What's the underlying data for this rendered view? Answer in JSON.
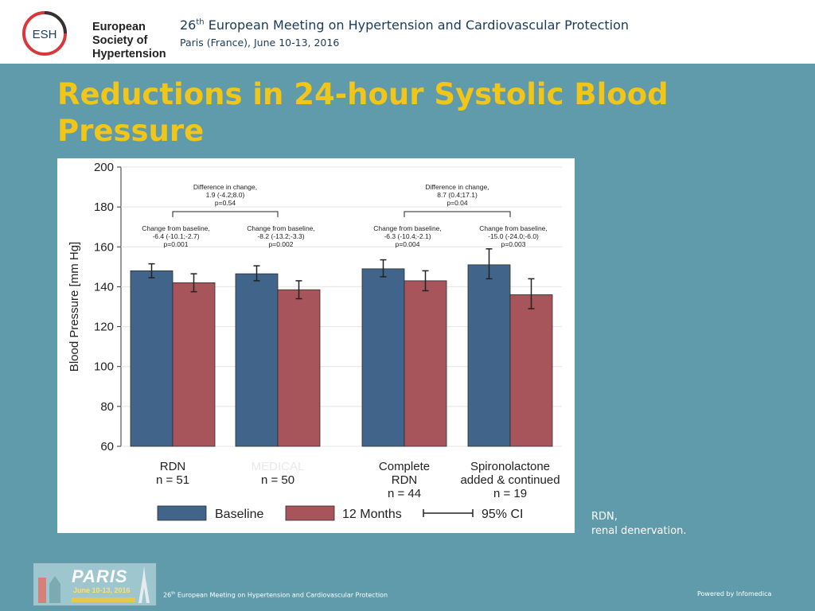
{
  "header": {
    "logo_lines": [
      "European",
      "Society of",
      "Hypertension"
    ],
    "logo_abbr": "ESH",
    "meeting_ordinal_num": "26",
    "meeting_ordinal_sup": "th",
    "meeting_title": " European Meeting on Hypertension and Cardiovascular Protection",
    "meeting_sub": "Paris (France), June 10-13, 2016"
  },
  "slide": {
    "title": "Reductions in 24-hour Systolic Blood Pressure"
  },
  "chart_data": {
    "type": "bar",
    "ylabel": "Blood Pressure [mm Hg]",
    "ylim": [
      60,
      200
    ],
    "yticks": [
      60,
      80,
      100,
      120,
      140,
      160,
      180,
      200
    ],
    "groups": [
      {
        "label_lines": [
          "RDN",
          "n = 51"
        ],
        "baseline": 148,
        "months12": 142,
        "baseline_ci": [
          144.5,
          151.5
        ],
        "months12_ci": [
          137.5,
          146.5
        ]
      },
      {
        "label_lines": [
          "MEDICAL",
          "n = 50"
        ],
        "baseline": 146.5,
        "months12": 138.5,
        "baseline_ci": [
          143,
          150.5
        ],
        "months12_ci": [
          134,
          143
        ]
      },
      {
        "label_lines": [
          "Complete",
          "RDN",
          "n = 44"
        ],
        "baseline": 149,
        "months12": 143,
        "baseline_ci": [
          145,
          153.5
        ],
        "months12_ci": [
          138,
          148
        ]
      },
      {
        "label_lines": [
          "Spironolactone",
          "added & continued",
          "n = 19"
        ],
        "baseline": 151,
        "months12": 136,
        "baseline_ci": [
          144,
          159
        ],
        "months12_ci": [
          129,
          144
        ]
      }
    ],
    "series": [
      {
        "name": "Baseline",
        "color": "#41658a"
      },
      {
        "name": "12 Months",
        "color": "#a8545b"
      }
    ],
    "ci_legend": "95% CI",
    "change_annotations": [
      {
        "group": 0,
        "lines": [
          "Change from baseline,",
          "-6.4 (-10.1;-2.7)",
          "p=0.001"
        ]
      },
      {
        "group": 1,
        "lines": [
          "Change from baseline,",
          "-8.2 (-13.2;-3.3)",
          "p=0.002"
        ]
      },
      {
        "group": 2,
        "lines": [
          "Change from baseline,",
          "-6.3 (-10.4;-2.1)",
          "p=0.004"
        ]
      },
      {
        "group": 3,
        "lines": [
          "Change from baseline,",
          "-15.0 (-24.0;-6.0)",
          "p=0.003"
        ]
      }
    ],
    "difference_annotations": [
      {
        "groups": [
          0,
          1
        ],
        "lines": [
          "Difference in change,",
          "1.9 (-4.2;8.0)",
          "p=0.54"
        ]
      },
      {
        "groups": [
          2,
          3
        ],
        "lines": [
          "Difference in change,",
          "8.7 (0.4;17.1)",
          "p=0.04"
        ]
      }
    ]
  },
  "footnote": {
    "line1": "RDN,",
    "line2": "renal denervation."
  },
  "footer": {
    "badge_word": "PARIS",
    "badge_dates": "June 10-13, 2016",
    "text_num": "26",
    "text_sup": "th",
    "text_rest": " European Meeting on Hypertension and Cardiovascular Protection",
    "powered": "Powered by Infomedica"
  }
}
